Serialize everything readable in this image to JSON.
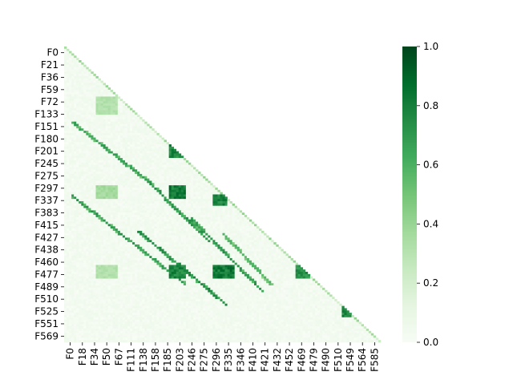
{
  "chart_data": {
    "type": "heatmap",
    "subtype": "lower-triangular correlation matrix",
    "title": "",
    "xlabel": "",
    "ylabel": "",
    "y_tick_labels": [
      "F0",
      "F21",
      "F36",
      "F59",
      "F72",
      "F133",
      "F151",
      "F180",
      "F201",
      "F245",
      "F275",
      "F297",
      "F337",
      "F383",
      "F415",
      "F427",
      "F438",
      "F460",
      "F477",
      "F489",
      "F510",
      "F525",
      "F551",
      "F569"
    ],
    "x_tick_labels": [
      "F0",
      "F18",
      "F34",
      "F50",
      "F67",
      "F111",
      "F138",
      "F158",
      "F185",
      "F203",
      "F246",
      "F275",
      "F296",
      "F335",
      "F346",
      "F410",
      "F421",
      "F432",
      "F452",
      "F469",
      "F479",
      "F490",
      "F510",
      "F549",
      "F564",
      "F585"
    ],
    "colorbar": {
      "min": 0.0,
      "max": 1.0,
      "ticks": [
        "0.0",
        "0.2",
        "0.4",
        "0.6",
        "0.8",
        "1.0"
      ],
      "colormap": "Greens",
      "color_low": "#f7fcf5",
      "color_high": "#00441b"
    },
    "mask": "upper triangle hidden",
    "blocks": [
      {
        "rows": [
          0.17,
          0.22
        ],
        "cols": [
          0.1,
          0.16
        ],
        "value": 0.35
      },
      {
        "rows": [
          0.33,
          0.37
        ],
        "cols": [
          0.33,
          0.38
        ],
        "value": 0.85
      },
      {
        "rows": [
          0.47,
          0.51
        ],
        "cols": [
          0.33,
          0.38
        ],
        "value": 0.9
      },
      {
        "rows": [
          0.47,
          0.51
        ],
        "cols": [
          0.1,
          0.16
        ],
        "value": 0.4
      },
      {
        "rows": [
          0.5,
          0.53
        ],
        "cols": [
          0.47,
          0.51
        ],
        "value": 0.85
      },
      {
        "rows": [
          0.74,
          0.78
        ],
        "cols": [
          0.33,
          0.38
        ],
        "value": 0.85
      },
      {
        "rows": [
          0.74,
          0.78
        ],
        "cols": [
          0.47,
          0.53
        ],
        "value": 0.9
      },
      {
        "rows": [
          0.74,
          0.78
        ],
        "cols": [
          0.73,
          0.77
        ],
        "value": 0.8
      },
      {
        "rows": [
          0.74,
          0.78
        ],
        "cols": [
          0.1,
          0.16
        ],
        "value": 0.35
      },
      {
        "rows": [
          0.88,
          0.91
        ],
        "cols": [
          0.88,
          0.9
        ],
        "value": 0.85
      }
    ],
    "lines": [
      {
        "from": [
          0.25,
          0.02
        ],
        "to": [
          0.45,
          0.26
        ],
        "value": 0.7
      },
      {
        "from": [
          0.5,
          0.02
        ],
        "to": [
          0.8,
          0.38
        ],
        "value": 0.75
      },
      {
        "from": [
          0.45,
          0.26
        ],
        "to": [
          0.65,
          0.45
        ],
        "value": 0.75
      },
      {
        "from": [
          0.62,
          0.23
        ],
        "to": [
          0.87,
          0.51
        ],
        "value": 0.8
      },
      {
        "from": [
          0.58,
          0.4
        ],
        "to": [
          0.82,
          0.62
        ],
        "value": 0.75
      },
      {
        "from": [
          0.63,
          0.5
        ],
        "to": [
          0.8,
          0.65
        ],
        "value": 0.6
      }
    ]
  }
}
